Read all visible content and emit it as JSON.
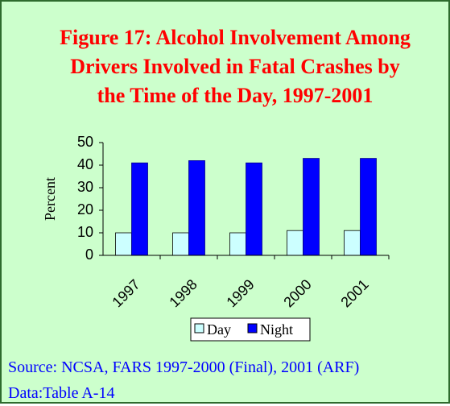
{
  "chart_data": {
    "type": "bar",
    "title": "Figure 17: Alcohol Involvement Among Drivers Involved in Fatal Crashes by the Time of the Day, 1997-2001",
    "ylabel": "Percent",
    "categories": [
      "1997",
      "1998",
      "1999",
      "2000",
      "2001"
    ],
    "series": [
      {
        "name": "Day",
        "color": "#ccffff",
        "values": [
          10,
          10,
          10,
          11,
          11
        ]
      },
      {
        "name": "Night",
        "color": "#0000ff",
        "values": [
          41,
          42,
          41,
          43,
          43
        ]
      }
    ],
    "ylim": [
      0,
      50
    ],
    "yticks": [
      0,
      10,
      20,
      30,
      40,
      50
    ],
    "source": "Source: NCSA, FARS 1997-2000 (Final), 2001 (ARF) Data:Table A-14"
  }
}
